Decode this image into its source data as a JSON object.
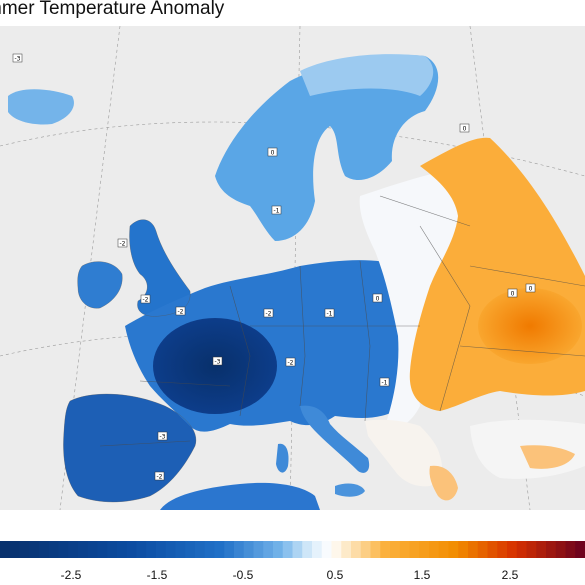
{
  "title": "mmer Temperature Anomaly",
  "colors": {
    "ocean": "#ececec",
    "coldest": "#08306b",
    "cold": "#2171c8",
    "cool": "#74b4ea",
    "neutral": "#ffffff",
    "warm": "#fbb03b",
    "hot": "#f28c00",
    "hottest": "#67001f"
  },
  "colorbar": {
    "min": -3.5,
    "max": 3.0,
    "tick_labels": [
      "-2.5",
      "-1.5",
      "-0.5",
      "0.5",
      "1.5",
      "2.5"
    ]
  },
  "station_labels": [
    {
      "label": "-2"
    },
    {
      "label": "-3"
    },
    {
      "label": "-3"
    },
    {
      "label": "-2"
    },
    {
      "label": "-2"
    },
    {
      "label": "-1"
    },
    {
      "label": "-1"
    },
    {
      "label": "-2"
    },
    {
      "label": "-1"
    },
    {
      "label": "0"
    },
    {
      "label": "0"
    },
    {
      "label": "0"
    },
    {
      "label": "-2"
    },
    {
      "label": "-2"
    },
    {
      "label": "-3"
    },
    {
      "label": "0"
    },
    {
      "label": "0"
    }
  ]
}
